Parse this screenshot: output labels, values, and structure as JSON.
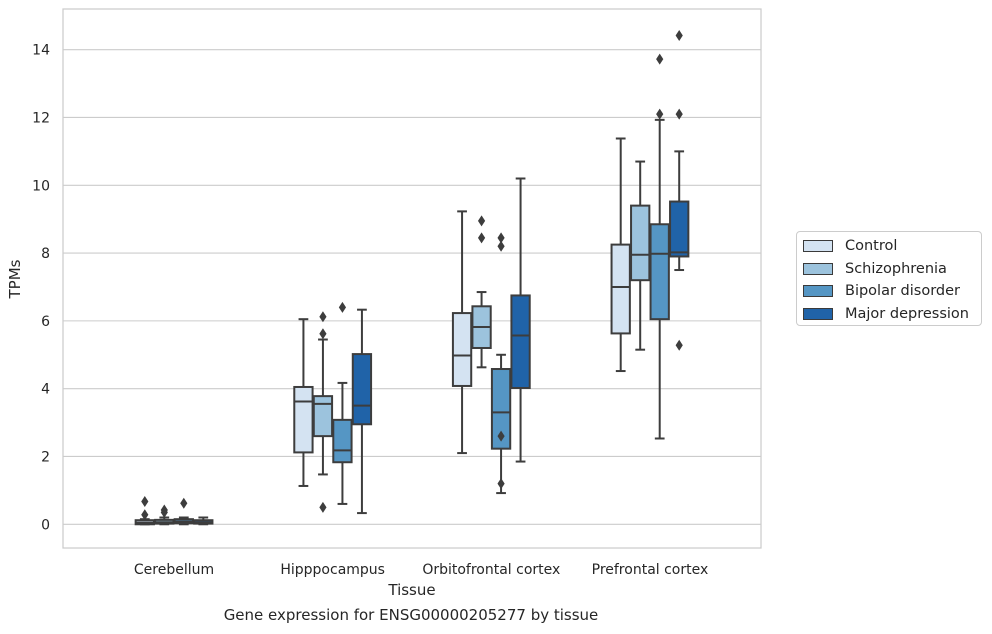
{
  "chart_data": {
    "type": "box",
    "xlabel": "Tissue",
    "ylabel": "TPMs",
    "caption": "Gene expression for ENSG00000205277 by tissue",
    "categories": [
      "Cerebellum",
      "Hipppocampus",
      "Orbitofrontal cortex",
      "Prefrontal cortex"
    ],
    "ylim": [
      -0.7,
      15.2
    ],
    "yticks": [
      "0",
      "2",
      "4",
      "6",
      "8",
      "10",
      "12",
      "14"
    ],
    "grid": "horizontal",
    "legend_position": "right",
    "series": [
      {
        "name": "Control",
        "color": "#d4e3f2",
        "boxes": [
          {
            "whislo": 0.0,
            "q1": 0.0,
            "med": 0.05,
            "q3": 0.12,
            "whishi": 0.15,
            "fliers": [
              0.28,
              0.67
            ]
          },
          {
            "whislo": 1.13,
            "q1": 2.12,
            "med": 3.62,
            "q3": 4.05,
            "whishi": 6.05,
            "fliers": []
          },
          {
            "whislo": 2.1,
            "q1": 4.08,
            "med": 4.98,
            "q3": 6.23,
            "whishi": 9.23,
            "fliers": []
          },
          {
            "whislo": 4.52,
            "q1": 5.63,
            "med": 7.0,
            "q3": 8.25,
            "whishi": 11.38,
            "fliers": []
          }
        ]
      },
      {
        "name": "Schizophrenia",
        "color": "#9cc3dd",
        "boxes": [
          {
            "whislo": 0.0,
            "q1": 0.02,
            "med": 0.06,
            "q3": 0.13,
            "whishi": 0.2,
            "fliers": [
              0.35,
              0.42
            ]
          },
          {
            "whislo": 1.47,
            "q1": 2.6,
            "med": 3.55,
            "q3": 3.78,
            "whishi": 5.45,
            "fliers": [
              0.5,
              5.62,
              6.12
            ]
          },
          {
            "whislo": 4.63,
            "q1": 5.2,
            "med": 5.82,
            "q3": 6.43,
            "whishi": 6.85,
            "fliers": [
              8.45,
              8.95
            ]
          },
          {
            "whislo": 5.15,
            "q1": 7.2,
            "med": 7.95,
            "q3": 9.4,
            "whishi": 10.7,
            "fliers": []
          }
        ]
      },
      {
        "name": "Bipolar disorder",
        "color": "#5596c4",
        "boxes": [
          {
            "whislo": 0.0,
            "q1": 0.03,
            "med": 0.08,
            "q3": 0.15,
            "whishi": 0.2,
            "fliers": [
              0.62
            ]
          },
          {
            "whislo": 0.6,
            "q1": 1.83,
            "med": 2.18,
            "q3": 3.08,
            "whishi": 4.17,
            "fliers": [
              6.4
            ]
          },
          {
            "whislo": 0.92,
            "q1": 2.23,
            "med": 3.3,
            "q3": 4.58,
            "whishi": 5.0,
            "fliers": [
              1.2,
              2.6,
              8.2,
              8.45
            ]
          },
          {
            "whislo": 2.53,
            "q1": 6.05,
            "med": 7.98,
            "q3": 8.85,
            "whishi": 11.93,
            "fliers": [
              12.1,
              13.72
            ]
          }
        ]
      },
      {
        "name": "Major depression",
        "color": "#2063a8",
        "boxes": [
          {
            "whislo": 0.0,
            "q1": 0.02,
            "med": 0.06,
            "q3": 0.12,
            "whishi": 0.2,
            "fliers": []
          },
          {
            "whislo": 0.33,
            "q1": 2.95,
            "med": 3.5,
            "q3": 5.02,
            "whishi": 6.33,
            "fliers": []
          },
          {
            "whislo": 1.85,
            "q1": 4.02,
            "med": 5.57,
            "q3": 6.75,
            "whishi": 10.2,
            "fliers": []
          },
          {
            "whislo": 7.5,
            "q1": 7.9,
            "med": 8.02,
            "q3": 9.52,
            "whishi": 11.0,
            "fliers": [
              5.28,
              12.1,
              14.42
            ]
          }
        ]
      }
    ]
  }
}
